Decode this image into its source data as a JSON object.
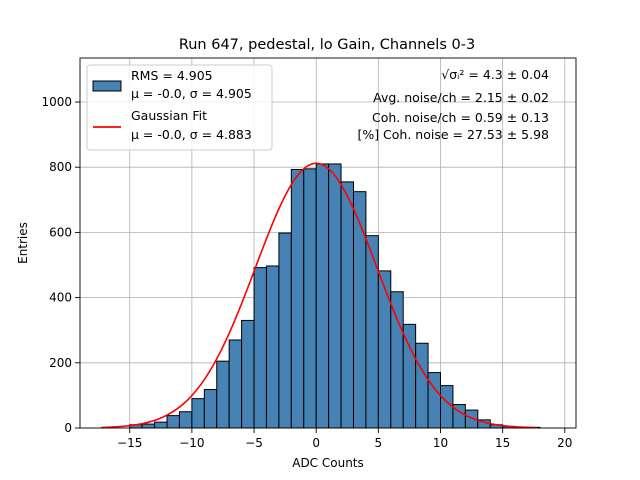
{
  "chart_data": {
    "type": "bar",
    "title": "Run 647, pedestal, lo Gain, Channels 0-3",
    "xlabel": "ADC Counts",
    "ylabel": "Entries",
    "xlim": [
      -19,
      20.9
    ],
    "ylim": [
      0,
      1135
    ],
    "grid": true,
    "x_ticks": [
      -15,
      -10,
      -5,
      0,
      5,
      10,
      15,
      20
    ],
    "y_ticks": [
      0,
      200,
      400,
      600,
      800,
      1000
    ],
    "bin_width": 1,
    "bin_edges_start": -15,
    "histogram": {
      "name": "RMS = 4.905",
      "stats": "μ = -0.0, σ = 4.905",
      "color": "#4682b4",
      "values": [
        10,
        12,
        18,
        38,
        50,
        90,
        118,
        205,
        270,
        330,
        492,
        497,
        598,
        793,
        795,
        810,
        810,
        755,
        725,
        590,
        482,
        418,
        318,
        260,
        170,
        130,
        72,
        55,
        25,
        10,
        5,
        3,
        2
      ]
    },
    "fit": {
      "name": "Gaussian Fit",
      "stats": "μ = -0.0, σ = 4.883",
      "color": "#ff0000",
      "mu": 0.0,
      "sigma": 4.883,
      "amplitude": 812,
      "x_range": [
        -17.3,
        17.8
      ]
    },
    "legend_position": "upper left",
    "annotations": [
      {
        "prefix": "",
        "formula": "√σᵢ²",
        "suffix": " = 4.3 ± 0.04"
      },
      {
        "prefix": "Avg. noise/ch = 2.15 ± 0.02",
        "formula": "",
        "suffix": ""
      },
      {
        "prefix": "Coh. noise/ch = 0.59 ± 0.13",
        "formula": "",
        "suffix": ""
      },
      {
        "prefix": "[%] Coh. noise = 27.53 ± 5.98",
        "formula": "",
        "suffix": ""
      }
    ]
  }
}
